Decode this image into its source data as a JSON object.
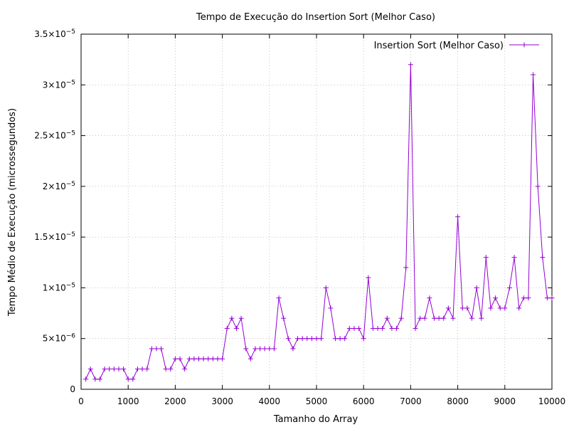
{
  "chart_data": {
    "type": "line",
    "title": "Tempo de Execução do Insertion Sort (Melhor Caso)",
    "xlabel": "Tamanho do Array",
    "ylabel": "Tempo Médio de Execução (microssegundos)",
    "xlim": [
      0,
      10000
    ],
    "ylim": [
      0,
      3.5e-05
    ],
    "x_ticks": [
      "0",
      "1000",
      "2000",
      "3000",
      "4000",
      "5000",
      "6000",
      "7000",
      "8000",
      "9000",
      "10000"
    ],
    "y_ticks": [
      {
        "mantissa": "0",
        "exp": ""
      },
      {
        "mantissa": "5×10",
        "exp": "−6"
      },
      {
        "mantissa": "1×10",
        "exp": "−5"
      },
      {
        "mantissa": "1.5×10",
        "exp": "−5"
      },
      {
        "mantissa": "2×10",
        "exp": "−5"
      },
      {
        "mantissa": "2.5×10",
        "exp": "−5"
      },
      {
        "mantissa": "3×10",
        "exp": "−5"
      },
      {
        "mantissa": "3.5×10",
        "exp": "−5"
      }
    ],
    "grid": true,
    "legend_position": "top-right",
    "series": [
      {
        "name": "Insertion Sort (Melhor Caso)",
        "color": "#9400d3",
        "marker": "plus",
        "x": [
          100,
          200,
          300,
          400,
          500,
          600,
          700,
          800,
          900,
          1000,
          1100,
          1200,
          1300,
          1400,
          1500,
          1600,
          1700,
          1800,
          1900,
          2000,
          2100,
          2200,
          2300,
          2400,
          2500,
          2600,
          2700,
          2800,
          2900,
          3000,
          3100,
          3200,
          3300,
          3400,
          3500,
          3600,
          3700,
          3800,
          3900,
          4000,
          4100,
          4200,
          4300,
          4400,
          4500,
          4600,
          4700,
          4800,
          4900,
          5000,
          5100,
          5200,
          5300,
          5400,
          5500,
          5600,
          5700,
          5800,
          5900,
          6000,
          6100,
          6200,
          6300,
          6400,
          6500,
          6600,
          6700,
          6800,
          6900,
          7000,
          7100,
          7200,
          7300,
          7400,
          7500,
          7600,
          7700,
          7800,
          7900,
          8000,
          8100,
          8200,
          8300,
          8400,
          8500,
          8600,
          8700,
          8800,
          8900,
          9000,
          9100,
          9200,
          9300,
          9400,
          9500,
          9600,
          9700,
          9800,
          9900,
          10000
        ],
        "y": [
          1e-06,
          2e-06,
          1e-06,
          1e-06,
          2e-06,
          2e-06,
          2e-06,
          2e-06,
          2e-06,
          1e-06,
          1e-06,
          2e-06,
          2e-06,
          2e-06,
          4e-06,
          4e-06,
          4e-06,
          2e-06,
          2e-06,
          3e-06,
          3e-06,
          2e-06,
          3e-06,
          3e-06,
          3e-06,
          3e-06,
          3e-06,
          3e-06,
          3e-06,
          3e-06,
          6e-06,
          7e-06,
          6e-06,
          7e-06,
          4e-06,
          3e-06,
          4e-06,
          4e-06,
          4e-06,
          4e-06,
          4e-06,
          9e-06,
          7e-06,
          5e-06,
          4e-06,
          5e-06,
          5e-06,
          5e-06,
          5e-06,
          5e-06,
          5e-06,
          1e-05,
          8e-06,
          5e-06,
          5e-06,
          5e-06,
          6e-06,
          6e-06,
          6e-06,
          5e-06,
          1.1e-05,
          6e-06,
          6e-06,
          6e-06,
          7e-06,
          6e-06,
          6e-06,
          7e-06,
          1.2e-05,
          3.2e-05,
          6e-06,
          7e-06,
          7e-06,
          9e-06,
          7e-06,
          7e-06,
          7e-06,
          8e-06,
          7e-06,
          1.7e-05,
          8e-06,
          8e-06,
          7e-06,
          1e-05,
          7e-06,
          1.3e-05,
          8e-06,
          9e-06,
          8e-06,
          8e-06,
          1e-05,
          1.3e-05,
          8e-06,
          9e-06,
          9e-06,
          3.1e-05,
          2e-05,
          1.3e-05,
          9e-06,
          9e-06
        ]
      }
    ]
  }
}
